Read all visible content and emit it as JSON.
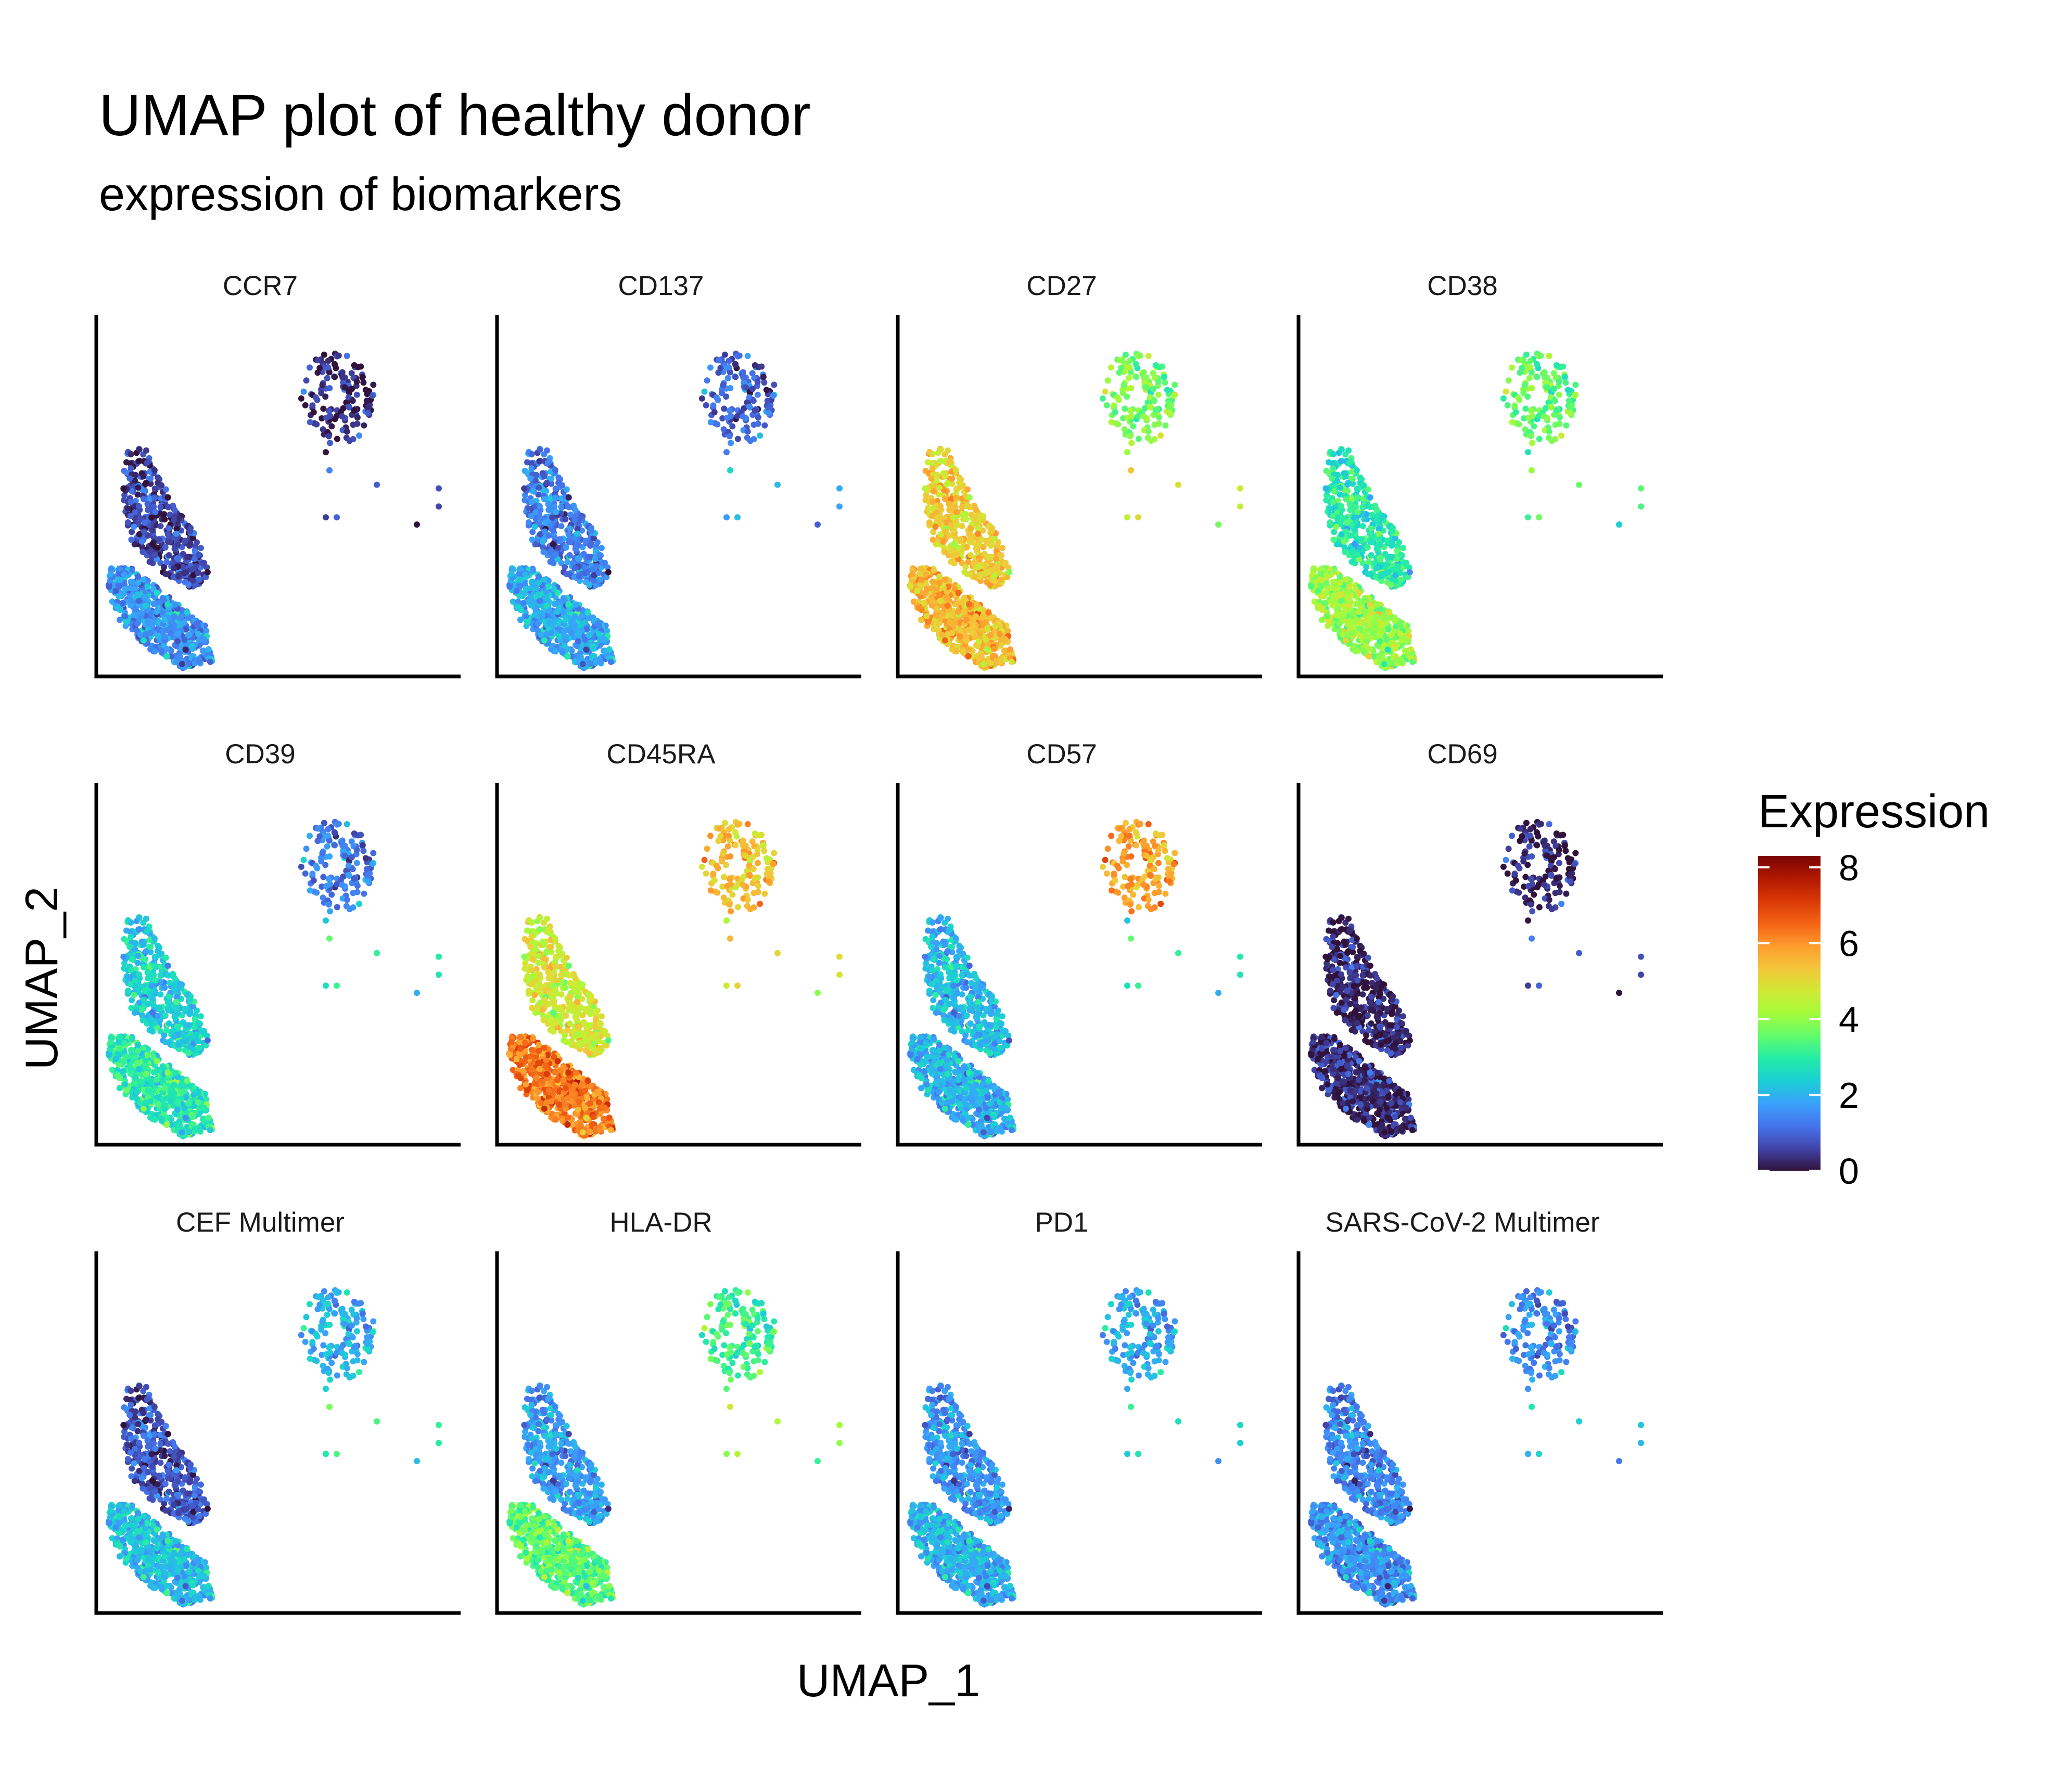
{
  "header": {
    "title": "UMAP plot of healthy donor",
    "subtitle": "expression of biomarkers"
  },
  "chart_data": {
    "type": "scatter",
    "title": "UMAP plot of healthy donor",
    "subtitle": "expression of biomarkers",
    "xlabel": "UMAP_1",
    "ylabel": "UMAP_2",
    "facet_layout": {
      "rows": 3,
      "cols": 4
    },
    "grid": false,
    "colorscale": {
      "name": "turbo",
      "title": "Expression",
      "range": [
        0,
        8.3
      ],
      "ticks": [
        0,
        2,
        4,
        6,
        8
      ],
      "stops": [
        "#30123b",
        "#4145ab",
        "#4675ed",
        "#39a2fc",
        "#1bcfd4",
        "#24eca6",
        "#61fc6c",
        "#a4fc3b",
        "#d1e834",
        "#f3c63a",
        "#fe9b2d",
        "#f36315",
        "#d93806",
        "#b11901",
        "#7a0403"
      ]
    },
    "legend_position": "right",
    "panels": [
      {
        "name": "CCR7",
        "cluster_values": {
          "upper_group": 0.35,
          "naive_group": 0.6,
          "effector_group": 1.6,
          "stragglers": 0.8
        }
      },
      {
        "name": "CD137",
        "cluster_values": {
          "upper_group": 1.0,
          "naive_group": 1.3,
          "effector_group": 1.9,
          "stragglers": 2.0
        }
      },
      {
        "name": "CD27",
        "cluster_values": {
          "upper_group": 3.8,
          "naive_group": 5.2,
          "effector_group": 5.5,
          "stragglers": 4.8
        }
      },
      {
        "name": "CD38",
        "cluster_values": {
          "upper_group": 3.6,
          "naive_group": 2.9,
          "effector_group": 4.1,
          "stragglers": 3.5
        }
      },
      {
        "name": "CD39",
        "cluster_values": {
          "upper_group": 1.3,
          "naive_group": 2.4,
          "effector_group": 2.9,
          "stragglers": 3.0
        }
      },
      {
        "name": "CD45RA",
        "cluster_values": {
          "upper_group": 5.4,
          "naive_group": 4.7,
          "effector_group": 6.3,
          "stragglers": 5.0
        }
      },
      {
        "name": "CD57",
        "cluster_values": {
          "upper_group": 5.8,
          "naive_group": 2.1,
          "effector_group": 2.0,
          "stragglers": 3.0
        }
      },
      {
        "name": "CD69",
        "cluster_values": {
          "upper_group": 0.25,
          "naive_group": 0.2,
          "effector_group": 0.3,
          "stragglers": 0.8
        }
      },
      {
        "name": "CEF Multimer",
        "cluster_values": {
          "upper_group": 2.0,
          "naive_group": 0.8,
          "effector_group": 2.2,
          "stragglers": 3.2
        }
      },
      {
        "name": "HLA-DR",
        "cluster_values": {
          "upper_group": 3.2,
          "naive_group": 1.7,
          "effector_group": 3.5,
          "stragglers": 4.2
        }
      },
      {
        "name": "PD1",
        "cluster_values": {
          "upper_group": 1.9,
          "naive_group": 1.6,
          "effector_group": 2.0,
          "stragglers": 2.6
        }
      },
      {
        "name": "SARS-CoV-2 Multimer",
        "cluster_values": {
          "upper_group": 1.5,
          "naive_group": 1.4,
          "effector_group": 1.6,
          "stragglers": 2.3
        }
      }
    ]
  }
}
